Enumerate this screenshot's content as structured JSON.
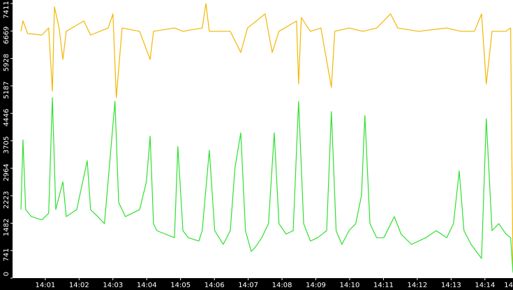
{
  "chart_data": {
    "type": "line",
    "xlim": [
      840.28,
      854.83
    ],
    "ylim": [
      0,
      7411
    ],
    "yticks": [
      0,
      741,
      1482,
      2223,
      2964,
      3705,
      4446,
      5187,
      5928,
      6669,
      7411
    ],
    "xticks": [
      {
        "value": 841,
        "label": "14:01"
      },
      {
        "value": 842,
        "label": "14:02"
      },
      {
        "value": 843,
        "label": "14:03"
      },
      {
        "value": 844,
        "label": "14:04"
      },
      {
        "value": 845,
        "label": "14:05"
      },
      {
        "value": 846,
        "label": "14:06"
      },
      {
        "value": 847,
        "label": "14:07"
      },
      {
        "value": 848,
        "label": "14:08"
      },
      {
        "value": 849,
        "label": "14:09"
      },
      {
        "value": 850,
        "label": "14:10"
      },
      {
        "value": 851,
        "label": "14:11"
      },
      {
        "value": 852,
        "label": "14:12"
      },
      {
        "value": 853,
        "label": "14:13"
      },
      {
        "value": 854,
        "label": "14:14"
      },
      {
        "value": 855,
        "label": "14"
      }
    ],
    "series": [
      {
        "color": "#f2b700",
        "x": [
          840.28,
          840.34,
          840.48,
          840.9,
          841.1,
          841.21,
          841.27,
          841.41,
          841.52,
          841.62,
          842.14,
          842.34,
          842.86,
          843.0,
          843.1,
          843.27,
          843.79,
          844.1,
          844.2,
          844.82,
          845.07,
          845.64,
          845.75,
          845.85,
          846.47,
          846.78,
          846.98,
          847.5,
          847.71,
          847.91,
          848.43,
          848.49,
          848.57,
          848.84,
          849.15,
          849.46,
          849.56,
          849.98,
          850.39,
          850.8,
          851.21,
          851.42,
          852.04,
          852.87,
          853.28,
          853.69,
          853.9,
          854.04,
          854.21,
          854.62,
          854.76,
          854.83
        ],
        "values": [
          6660,
          6940,
          6600,
          6560,
          6750,
          5050,
          7320,
          6750,
          5900,
          6660,
          6940,
          6560,
          6750,
          7130,
          4870,
          6750,
          6660,
          5900,
          6660,
          6750,
          6660,
          6750,
          7410,
          6660,
          6660,
          6090,
          6750,
          7130,
          6090,
          6660,
          6940,
          5240,
          7030,
          6660,
          6750,
          5150,
          6660,
          6750,
          6660,
          6750,
          7130,
          6750,
          6660,
          6750,
          6660,
          6660,
          7130,
          5240,
          6660,
          6660,
          6750,
          150
        ]
      },
      {
        "color": "#2ee02e",
        "x": [
          840.28,
          840.34,
          840.42,
          840.59,
          840.9,
          841.1,
          841.21,
          841.31,
          841.52,
          841.62,
          841.93,
          842.24,
          842.34,
          842.55,
          842.75,
          843.06,
          843.17,
          843.37,
          843.79,
          843.99,
          844.1,
          844.2,
          844.3,
          844.82,
          844.92,
          845.07,
          845.23,
          845.54,
          845.64,
          845.85,
          846.01,
          846.26,
          846.47,
          846.61,
          846.78,
          846.92,
          847.09,
          847.19,
          847.4,
          847.6,
          847.77,
          847.91,
          848.12,
          848.33,
          848.49,
          848.64,
          848.84,
          849.05,
          849.32,
          849.46,
          849.6,
          849.77,
          849.98,
          850.18,
          850.35,
          850.45,
          850.6,
          850.8,
          851.01,
          851.32,
          851.52,
          851.83,
          852.25,
          852.56,
          852.87,
          853.07,
          853.24,
          853.38,
          853.59,
          853.9,
          854.04,
          854.21,
          854.41,
          854.62,
          854.76,
          854.83
        ],
        "values": [
          1850,
          3730,
          1850,
          1660,
          1570,
          1750,
          4870,
          1850,
          2600,
          1660,
          1850,
          3170,
          1850,
          1660,
          1470,
          4770,
          2040,
          1660,
          1850,
          2600,
          3830,
          1470,
          1280,
          1090,
          3550,
          1280,
          1090,
          1000,
          1280,
          3450,
          1280,
          910,
          1280,
          2980,
          3920,
          1280,
          720,
          810,
          1090,
          1470,
          3920,
          1470,
          1190,
          1280,
          4770,
          1470,
          1000,
          1090,
          1280,
          4490,
          1280,
          910,
          1280,
          1470,
          2230,
          4390,
          1470,
          1090,
          1090,
          1660,
          1190,
          910,
          1090,
          1280,
          1090,
          1470,
          2890,
          1280,
          910,
          530,
          4300,
          1280,
          1470,
          1190,
          1090,
          150
        ]
      }
    ]
  }
}
